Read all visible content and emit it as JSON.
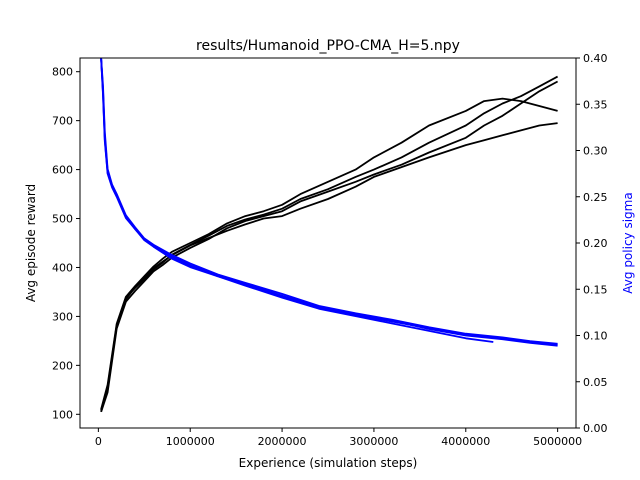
{
  "chart_data": {
    "type": "line",
    "title": "results/Humanoid_PPO-CMA_H=5.npy",
    "xlabel": "Experience (simulation steps)",
    "ylabel_left": "Avg episode reward",
    "ylabel_right": "Avg policy sigma",
    "xlim": [
      -200000,
      5200000
    ],
    "ylim_left": [
      72,
      828
    ],
    "ylim_right": [
      0.0,
      0.4
    ],
    "x_ticks": [
      0,
      1000000,
      2000000,
      3000000,
      4000000,
      5000000
    ],
    "x_tick_labels": [
      "0",
      "1000000",
      "2000000",
      "3000000",
      "4000000",
      "5000000"
    ],
    "y_left_ticks": [
      100,
      200,
      300,
      400,
      500,
      600,
      700,
      800
    ],
    "y_left_tick_labels": [
      "100",
      "200",
      "300",
      "400",
      "500",
      "600",
      "700",
      "800"
    ],
    "y_right_ticks": [
      0.0,
      0.05,
      0.1,
      0.15,
      0.2,
      0.25,
      0.3,
      0.35,
      0.4
    ],
    "y_right_tick_labels": [
      "0.00",
      "0.05",
      "0.10",
      "0.15",
      "0.20",
      "0.25",
      "0.30",
      "0.35",
      "0.40"
    ],
    "grid": false,
    "colors": {
      "reward": "#000000",
      "sigma": "#0000ff",
      "axes": "#000000"
    },
    "reward_series": [
      {
        "axis": "left",
        "color": "#000000",
        "x": [
          30000,
          100000,
          200000,
          300000,
          400000,
          500000,
          600000,
          700000,
          800000,
          1000000,
          1200000,
          1400000,
          1600000,
          1800000,
          2000000,
          2200000,
          2500000,
          2800000,
          3000000,
          3300000,
          3600000,
          4000000,
          4200000,
          4400000,
          4600000,
          4800000,
          5000000
        ],
        "y": [
          105,
          150,
          280,
          335,
          360,
          378,
          398,
          412,
          425,
          445,
          460,
          475,
          488,
          500,
          505,
          520,
          540,
          565,
          585,
          605,
          625,
          650,
          660,
          670,
          680,
          690,
          695
        ]
      },
      {
        "axis": "left",
        "color": "#000000",
        "x": [
          30000,
          100000,
          200000,
          300000,
          400000,
          500000,
          600000,
          700000,
          800000,
          1000000,
          1200000,
          1400000,
          1600000,
          1800000,
          2000000,
          2200000,
          2500000,
          2800000,
          3000000,
          3300000,
          3600000,
          4000000,
          4200000,
          4400000,
          4600000,
          4800000,
          5000000
        ],
        "y": [
          105,
          145,
          275,
          330,
          352,
          372,
          392,
          405,
          420,
          440,
          458,
          480,
          495,
          505,
          515,
          535,
          555,
          575,
          590,
          610,
          635,
          665,
          690,
          710,
          735,
          760,
          780
        ]
      },
      {
        "axis": "left",
        "color": "#000000",
        "x": [
          30000,
          100000,
          200000,
          300000,
          400000,
          500000,
          600000,
          700000,
          800000,
          1000000,
          1200000,
          1400000,
          1600000,
          1800000,
          2000000,
          2200000,
          2500000,
          2800000,
          3000000,
          3300000,
          3600000,
          4000000,
          4200000,
          4400000,
          4600000,
          4800000,
          5000000
        ],
        "y": [
          110,
          160,
          285,
          340,
          362,
          382,
          402,
          418,
          432,
          450,
          468,
          490,
          505,
          515,
          528,
          550,
          575,
          600,
          625,
          655,
          690,
          720,
          740,
          745,
          740,
          730,
          720
        ]
      },
      {
        "axis": "left",
        "color": "#000000",
        "x": [
          30000,
          100000,
          200000,
          300000,
          400000,
          500000,
          600000,
          700000,
          800000,
          1000000,
          1200000,
          1400000,
          1600000,
          1800000,
          2000000,
          2200000,
          2500000,
          2800000,
          3000000,
          3300000,
          3600000,
          4000000,
          4200000,
          4400000,
          4600000,
          4800000,
          5000000
        ],
        "y": [
          108,
          155,
          282,
          338,
          358,
          376,
          396,
          410,
          426,
          446,
          465,
          485,
          498,
          508,
          520,
          540,
          560,
          585,
          600,
          625,
          655,
          690,
          715,
          735,
          750,
          770,
          790
        ]
      }
    ],
    "sigma_series": [
      {
        "axis": "right",
        "color": "#0000ff",
        "x": [
          30000,
          50000,
          70000,
          100000,
          150000,
          200000,
          300000,
          400000,
          500000,
          600000,
          800000,
          1000000,
          1300000,
          1600000,
          2000000,
          2400000,
          2800000,
          3200000,
          3600000,
          4000000,
          4300000
        ],
        "y": [
          0.4,
          0.36,
          0.31,
          0.275,
          0.26,
          0.25,
          0.227,
          0.215,
          0.203,
          0.196,
          0.183,
          0.174,
          0.164,
          0.154,
          0.141,
          0.129,
          0.121,
          0.113,
          0.105,
          0.097,
          0.093
        ]
      },
      {
        "axis": "right",
        "color": "#0000ff",
        "x": [
          30000,
          50000,
          70000,
          100000,
          150000,
          200000,
          300000,
          400000,
          500000,
          600000,
          800000,
          1000000,
          1300000,
          1600000,
          2000000,
          2400000,
          2800000,
          3200000,
          3600000,
          4000000,
          4400000,
          4700000,
          5000000
        ],
        "y": [
          0.4,
          0.365,
          0.315,
          0.278,
          0.262,
          0.252,
          0.228,
          0.215,
          0.204,
          0.197,
          0.186,
          0.176,
          0.165,
          0.156,
          0.143,
          0.131,
          0.122,
          0.115,
          0.108,
          0.101,
          0.097,
          0.093,
          0.09
        ]
      },
      {
        "axis": "right",
        "color": "#0000ff",
        "x": [
          30000,
          50000,
          70000,
          100000,
          150000,
          200000,
          300000,
          400000,
          500000,
          600000,
          800000,
          1000000,
          1300000,
          1600000,
          2000000,
          2400000,
          2800000,
          3200000,
          3600000,
          4000000,
          4400000,
          4700000,
          5000000
        ],
        "y": [
          0.4,
          0.37,
          0.32,
          0.28,
          0.263,
          0.253,
          0.23,
          0.217,
          0.205,
          0.198,
          0.187,
          0.178,
          0.166,
          0.157,
          0.145,
          0.132,
          0.124,
          0.117,
          0.109,
          0.102,
          0.098,
          0.094,
          0.091
        ]
      },
      {
        "axis": "right",
        "color": "#0000ff",
        "x": [
          30000,
          50000,
          70000,
          100000,
          150000,
          200000,
          300000,
          400000,
          500000,
          600000,
          800000,
          1000000,
          1300000,
          1600000,
          2000000,
          2400000,
          2800000,
          3200000,
          3600000,
          4000000,
          4400000,
          4700000,
          5000000
        ],
        "y": [
          0.4,
          0.362,
          0.312,
          0.276,
          0.261,
          0.251,
          0.229,
          0.216,
          0.204,
          0.197,
          0.185,
          0.175,
          0.164,
          0.155,
          0.142,
          0.13,
          0.123,
          0.116,
          0.107,
          0.1,
          0.096,
          0.092,
          0.089
        ]
      }
    ]
  }
}
